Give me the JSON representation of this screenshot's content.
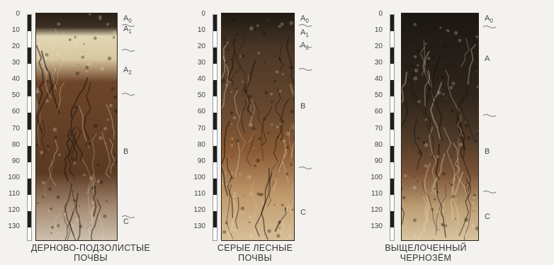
{
  "depth_ticks": [
    "0",
    "10",
    "20",
    "30",
    "40",
    "50",
    "60",
    "70",
    "80",
    "90",
    "100",
    "110",
    "120",
    "130"
  ],
  "profiles": [
    {
      "caption": "ДЕРНОВО-ПОДЗОЛИСТЫЕ\nПОЧВЫ",
      "horizons": [
        {
          "label": "A",
          "sub": "0",
          "depth": 0
        },
        {
          "label": "A",
          "sub": "1",
          "depth": 10
        },
        {
          "label": "A",
          "sub": "2",
          "depth": 35
        },
        {
          "label": "B",
          "sub": "",
          "depth": 85
        },
        {
          "label": "C",
          "sub": "",
          "depth": 128
        }
      ],
      "boundaries": [
        3,
        18,
        45,
        120
      ],
      "colors": {
        "top": "#2a2118",
        "mid": "#e2d7b3",
        "low": "#6d4529",
        "bottom": "#cfc3b1"
      }
    },
    {
      "caption": "СЕРЫЕ ЛЕСНЫЕ\nПОЧВЫ",
      "horizons": [
        {
          "label": "A",
          "sub": "0",
          "depth": 0
        },
        {
          "label": "A",
          "sub": "1",
          "depth": 12
        },
        {
          "label": "A",
          "sub": "2",
          "depth": 20
        },
        {
          "label": "B",
          "sub": "",
          "depth": 57
        },
        {
          "label": "C",
          "sub": "",
          "depth": 122
        }
      ],
      "boundaries": [
        3,
        16,
        30,
        90
      ],
      "colors": {
        "top": "#1f1a14",
        "mid": "#4a3626",
        "low": "#8a5a34",
        "bottom": "#d8c09a"
      }
    },
    {
      "caption": "ВЫЩЕЛОЧЕННЫЙ\nЧЕРНОЗЁМ",
      "horizons": [
        {
          "label": "A",
          "sub": "0",
          "depth": 0
        },
        {
          "label": "A",
          "sub": "",
          "depth": 28
        },
        {
          "label": "B",
          "sub": "",
          "depth": 85
        },
        {
          "label": "C",
          "sub": "",
          "depth": 125
        }
      ],
      "boundaries": [
        4,
        58,
        105
      ],
      "colors": {
        "top": "#1c1713",
        "mid": "#2e241b",
        "low": "#7a5236",
        "bottom": "#d9c6a2"
      }
    }
  ]
}
